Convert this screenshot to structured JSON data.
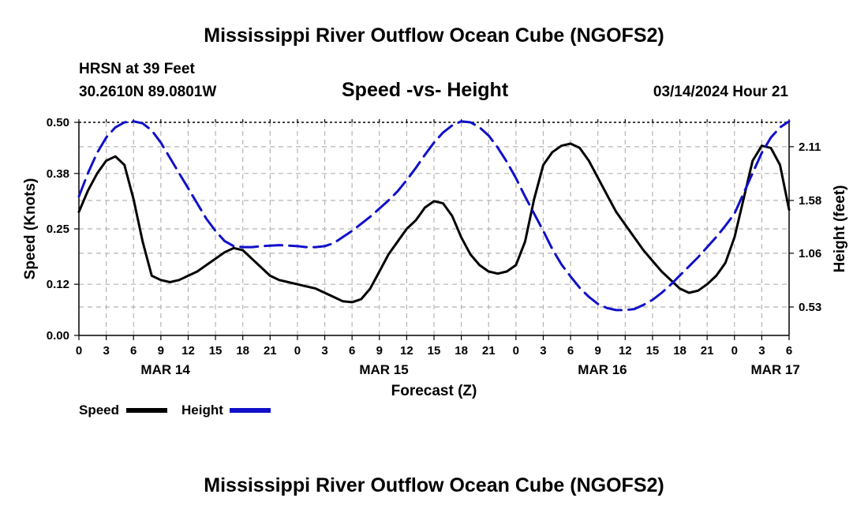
{
  "page": {
    "title": "Mississippi River Outflow Ocean Cube (NGOFS2)",
    "station": "HRSN at 39 Feet",
    "coords": "30.2610N  89.0801W",
    "subtitle": "Speed -vs- Height",
    "datetime": "03/14/2024 Hour 21",
    "footer_title": "Mississippi River Outflow Ocean Cube (NGOFS2)"
  },
  "legend": {
    "speed_label": "Speed",
    "height_label": "Height"
  },
  "colors": {
    "speed": "#000000",
    "height": "#1010c8",
    "grid": "#b4b4b4"
  },
  "chart_data": {
    "type": "line",
    "title": "Speed -vs- Height",
    "xlabel": "Forecast (Z)",
    "ylabel": "Speed (Knots)",
    "y2label": "Height (feet)",
    "xlim": [
      0,
      78
    ],
    "ylim": [
      0,
      0.5
    ],
    "y2lim": [
      0.25,
      2.35
    ],
    "x_ticks": [
      0,
      3,
      6,
      9,
      12,
      15,
      18,
      21,
      24,
      27,
      30,
      33,
      36,
      39,
      42,
      45,
      48,
      51,
      54,
      57,
      60,
      63,
      66,
      69,
      72,
      75,
      78
    ],
    "x_tick_labels": [
      "0",
      "3",
      "6",
      "9",
      "12",
      "15",
      "18",
      "21",
      "0",
      "3",
      "6",
      "9",
      "12",
      "15",
      "18",
      "21",
      "0",
      "3",
      "6",
      "9",
      "12",
      "15",
      "18",
      "21",
      "0",
      "3",
      "6"
    ],
    "y_ticks": [
      0.0,
      0.12,
      0.25,
      0.38,
      0.5
    ],
    "y_tick_labels": [
      "0.00",
      "0.12",
      "0.25",
      "0.38",
      "0.50"
    ],
    "y2_ticks": [
      0.53,
      1.06,
      1.58,
      2.11
    ],
    "y2_tick_labels": [
      "0.53",
      "1.06",
      "1.58",
      "2.11"
    ],
    "day_labels": [
      {
        "x": 9.5,
        "label": "MAR 14"
      },
      {
        "x": 33.5,
        "label": "MAR 15"
      },
      {
        "x": 57.5,
        "label": "MAR 16"
      },
      {
        "x": 76.5,
        "label": "MAR 17"
      }
    ],
    "series": [
      {
        "name": "Speed",
        "axis": "left",
        "style": "solid",
        "x": [
          0,
          1,
          2,
          3,
          4,
          5,
          6,
          7,
          8,
          9,
          10,
          11,
          12,
          13,
          14,
          15,
          16,
          17,
          18,
          19,
          20,
          21,
          22,
          23,
          24,
          25,
          26,
          27,
          28,
          29,
          30,
          31,
          32,
          33,
          34,
          35,
          36,
          37,
          38,
          39,
          40,
          41,
          42,
          43,
          44,
          45,
          46,
          47,
          48,
          49,
          50,
          51,
          52,
          53,
          54,
          55,
          56,
          57,
          58,
          59,
          60,
          61,
          62,
          63,
          64,
          65,
          66,
          67,
          68,
          69,
          70,
          71,
          72,
          73,
          74,
          75,
          76,
          77,
          78
        ],
        "values": [
          0.29,
          0.34,
          0.38,
          0.41,
          0.42,
          0.4,
          0.32,
          0.22,
          0.14,
          0.13,
          0.125,
          0.13,
          0.14,
          0.15,
          0.165,
          0.18,
          0.195,
          0.205,
          0.2,
          0.18,
          0.16,
          0.14,
          0.13,
          0.125,
          0.12,
          0.115,
          0.11,
          0.1,
          0.09,
          0.08,
          0.078,
          0.085,
          0.11,
          0.15,
          0.19,
          0.22,
          0.25,
          0.27,
          0.3,
          0.315,
          0.31,
          0.28,
          0.23,
          0.19,
          0.165,
          0.15,
          0.145,
          0.15,
          0.165,
          0.22,
          0.32,
          0.4,
          0.43,
          0.445,
          0.45,
          0.44,
          0.41,
          0.37,
          0.33,
          0.29,
          0.26,
          0.23,
          0.2,
          0.175,
          0.15,
          0.13,
          0.11,
          0.1,
          0.105,
          0.12,
          0.14,
          0.17,
          0.23,
          0.32,
          0.41,
          0.445,
          0.44,
          0.4,
          0.295
        ]
      },
      {
        "name": "Height",
        "axis": "right",
        "style": "dashed",
        "x": [
          0,
          1,
          2,
          3,
          4,
          5,
          6,
          7,
          8,
          9,
          10,
          11,
          12,
          13,
          14,
          15,
          16,
          17,
          18,
          19,
          20,
          21,
          22,
          23,
          24,
          25,
          26,
          27,
          28,
          29,
          30,
          31,
          32,
          33,
          34,
          35,
          36,
          37,
          38,
          39,
          40,
          41,
          42,
          43,
          44,
          45,
          46,
          47,
          48,
          49,
          50,
          51,
          52,
          53,
          54,
          55,
          56,
          57,
          58,
          59,
          60,
          61,
          62,
          63,
          64,
          65,
          66,
          67,
          68,
          69,
          70,
          71,
          72,
          73,
          74,
          75,
          76,
          77,
          78
        ],
        "values": [
          1.62,
          1.85,
          2.05,
          2.2,
          2.3,
          2.35,
          2.36,
          2.34,
          2.27,
          2.15,
          2.0,
          1.85,
          1.7,
          1.55,
          1.4,
          1.28,
          1.18,
          1.13,
          1.12,
          1.12,
          1.13,
          1.135,
          1.14,
          1.135,
          1.13,
          1.12,
          1.12,
          1.13,
          1.16,
          1.22,
          1.28,
          1.35,
          1.42,
          1.5,
          1.58,
          1.67,
          1.78,
          1.9,
          2.03,
          2.15,
          2.25,
          2.32,
          2.36,
          2.35,
          2.3,
          2.22,
          2.1,
          1.96,
          1.8,
          1.62,
          1.45,
          1.28,
          1.1,
          0.95,
          0.83,
          0.72,
          0.63,
          0.56,
          0.52,
          0.5,
          0.5,
          0.51,
          0.55,
          0.6,
          0.67,
          0.75,
          0.84,
          0.93,
          1.02,
          1.12,
          1.22,
          1.33,
          1.45,
          1.65,
          1.85,
          2.05,
          2.2,
          2.3,
          2.36
        ]
      }
    ]
  }
}
